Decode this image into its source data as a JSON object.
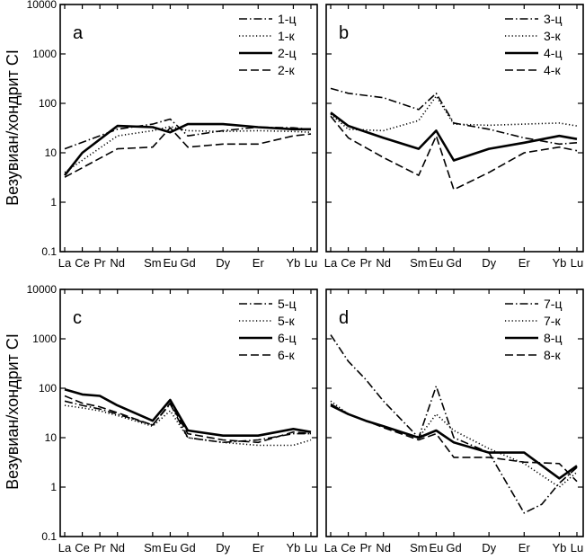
{
  "figure": {
    "ylabel": "Везувиан/хондрит CI"
  },
  "chart_data": [
    {
      "type": "line",
      "panel": "a",
      "xlabel": "",
      "ylabel": "Везувиан/хондрит CI",
      "y_scale": "log",
      "ylim": [
        0.1,
        10000
      ],
      "y_ticks": [
        "10000",
        "1000",
        "100",
        "10",
        "1",
        "0.1"
      ],
      "x_tick_labels": [
        "La",
        "Ce",
        "Pr",
        "Nd",
        "Sm",
        "Eu",
        "Gd",
        "Dy",
        "Er",
        "Yb",
        "Lu"
      ],
      "x_tick_positions": [
        0,
        1,
        2,
        3,
        5,
        6,
        7,
        9,
        11,
        13,
        14
      ],
      "grid": false,
      "legend_position": "top-right",
      "series": [
        {
          "name": "1-ц",
          "style": "dashdot",
          "x": [
            0,
            3,
            5,
            6,
            7,
            9,
            11,
            13,
            14
          ],
          "y": [
            12,
            30,
            38,
            48,
            22,
            28,
            33,
            32,
            30
          ]
        },
        {
          "name": "1-к",
          "style": "dotted",
          "x": [
            0,
            3,
            5,
            6,
            7,
            9,
            11,
            13,
            14
          ],
          "y": [
            4,
            22,
            28,
            34,
            28,
            27,
            28,
            27,
            26
          ]
        },
        {
          "name": "2-ц",
          "style": "solid",
          "x": [
            0,
            1,
            3,
            5,
            6,
            7,
            9,
            11,
            13,
            14
          ],
          "y": [
            3.5,
            10,
            35,
            33,
            26,
            38,
            38,
            33,
            30,
            30
          ]
        },
        {
          "name": "2-к",
          "style": "dashed",
          "x": [
            0,
            3,
            5,
            6,
            7,
            9,
            11,
            13,
            14
          ],
          "y": [
            3.2,
            12,
            13,
            32,
            13,
            15,
            15,
            22,
            24
          ]
        }
      ]
    },
    {
      "type": "line",
      "panel": "b",
      "xlabel": "",
      "ylabel": "",
      "y_scale": "log",
      "ylim": [
        0.1,
        10000
      ],
      "x_tick_labels": [
        "La",
        "Ce",
        "Pr",
        "Nd",
        "Sm",
        "Eu",
        "Gd",
        "Dy",
        "Er",
        "Yb",
        "Lu"
      ],
      "x_tick_positions": [
        0,
        1,
        2,
        3,
        5,
        6,
        7,
        9,
        11,
        13,
        14
      ],
      "grid": false,
      "legend_position": "top-right",
      "series": [
        {
          "name": "3-ц",
          "style": "dashdot",
          "x": [
            0,
            1,
            3,
            5,
            6,
            7,
            9,
            11,
            13,
            14
          ],
          "y": [
            200,
            160,
            130,
            75,
            160,
            40,
            30,
            20,
            15,
            16
          ]
        },
        {
          "name": "3-к",
          "style": "dotted",
          "x": [
            0,
            1,
            3,
            5,
            6,
            7,
            9,
            11,
            13,
            14
          ],
          "y": [
            60,
            30,
            28,
            45,
            140,
            38,
            36,
            38,
            40,
            35
          ]
        },
        {
          "name": "4-ц",
          "style": "solid",
          "x": [
            0,
            1,
            3,
            5,
            6,
            7,
            9,
            11,
            13,
            14
          ],
          "y": [
            65,
            35,
            20,
            12,
            28,
            7,
            12,
            16,
            22,
            19
          ]
        },
        {
          "name": "4-к",
          "style": "dashed",
          "x": [
            0,
            1,
            3,
            5,
            6,
            7,
            9,
            11,
            13,
            14
          ],
          "y": [
            55,
            20,
            8,
            3.5,
            22,
            1.8,
            4,
            10,
            13,
            11
          ]
        }
      ]
    },
    {
      "type": "line",
      "panel": "c",
      "xlabel": "",
      "ylabel": "Везувиан/хондрит CI",
      "y_scale": "log",
      "ylim": [
        0.1,
        10000
      ],
      "y_ticks": [
        "10000",
        "1000",
        "100",
        "10",
        "1",
        "0.1"
      ],
      "x_tick_labels": [
        "La",
        "Ce",
        "Pr",
        "Nd",
        "Sm",
        "Eu",
        "Gd",
        "Dy",
        "Er",
        "Yb",
        "Lu"
      ],
      "x_tick_positions": [
        0,
        1,
        2,
        3,
        5,
        6,
        7,
        9,
        11,
        13,
        14
      ],
      "grid": false,
      "legend_position": "top-right",
      "series": [
        {
          "name": "5-ц",
          "style": "dashdot",
          "x": [
            0,
            1,
            2,
            3,
            5,
            6,
            7,
            9,
            11,
            13,
            14
          ],
          "y": [
            55,
            45,
            38,
            30,
            18,
            48,
            10,
            8,
            9,
            12,
            12
          ]
        },
        {
          "name": "5-к",
          "style": "dotted",
          "x": [
            0,
            1,
            2,
            3,
            5,
            6,
            7,
            9,
            11,
            13,
            14
          ],
          "y": [
            45,
            40,
            35,
            28,
            17,
            35,
            10,
            8,
            7,
            7,
            9
          ]
        },
        {
          "name": "6-ц",
          "style": "solid",
          "x": [
            0,
            1,
            2,
            3,
            5,
            6,
            7,
            9,
            11,
            13,
            14
          ],
          "y": [
            95,
            75,
            70,
            45,
            22,
            58,
            14,
            11,
            11,
            15,
            13
          ]
        },
        {
          "name": "6-к",
          "style": "dashed",
          "x": [
            0,
            1,
            2,
            3,
            5,
            6,
            7,
            9,
            11,
            13,
            14
          ],
          "y": [
            70,
            50,
            42,
            32,
            18,
            50,
            12,
            9,
            8,
            13,
            12
          ]
        }
      ]
    },
    {
      "type": "line",
      "panel": "d",
      "xlabel": "",
      "ylabel": "",
      "y_scale": "log",
      "ylim": [
        0.1,
        10000
      ],
      "x_tick_labels": [
        "La",
        "Ce",
        "Pr",
        "Nd",
        "Sm",
        "Eu",
        "Gd",
        "Dy",
        "Er",
        "Yb",
        "Lu"
      ],
      "x_tick_positions": [
        0,
        1,
        2,
        3,
        5,
        6,
        7,
        9,
        11,
        13,
        14
      ],
      "grid": false,
      "legend_position": "top-right",
      "series": [
        {
          "name": "7-ц",
          "style": "dashdot",
          "x": [
            0,
            1,
            2,
            3,
            5,
            6,
            7,
            9,
            11,
            12,
            13,
            14
          ],
          "y": [
            1200,
            350,
            150,
            55,
            10,
            110,
            10,
            5,
            0.3,
            0.45,
            1.2,
            2.5
          ]
        },
        {
          "name": "7-к",
          "style": "dotted",
          "x": [
            0,
            1,
            2,
            3,
            5,
            6,
            7,
            9,
            11,
            13,
            14
          ],
          "y": [
            55,
            30,
            22,
            17,
            10,
            30,
            14,
            6,
            3,
            1,
            2
          ]
        },
        {
          "name": "8-ц",
          "style": "solid",
          "x": [
            0,
            1,
            2,
            3,
            5,
            6,
            7,
            9,
            11,
            13,
            14
          ],
          "y": [
            45,
            30,
            22,
            17,
            10,
            14,
            8,
            5,
            5,
            1.5,
            2.7
          ]
        },
        {
          "name": "8-к",
          "style": "dashed",
          "x": [
            0,
            1,
            2,
            3,
            5,
            6,
            7,
            9,
            11,
            13,
            14
          ],
          "y": [
            48,
            30,
            22,
            16,
            9,
            12,
            4,
            4,
            3.2,
            3,
            1.3
          ]
        }
      ]
    }
  ]
}
